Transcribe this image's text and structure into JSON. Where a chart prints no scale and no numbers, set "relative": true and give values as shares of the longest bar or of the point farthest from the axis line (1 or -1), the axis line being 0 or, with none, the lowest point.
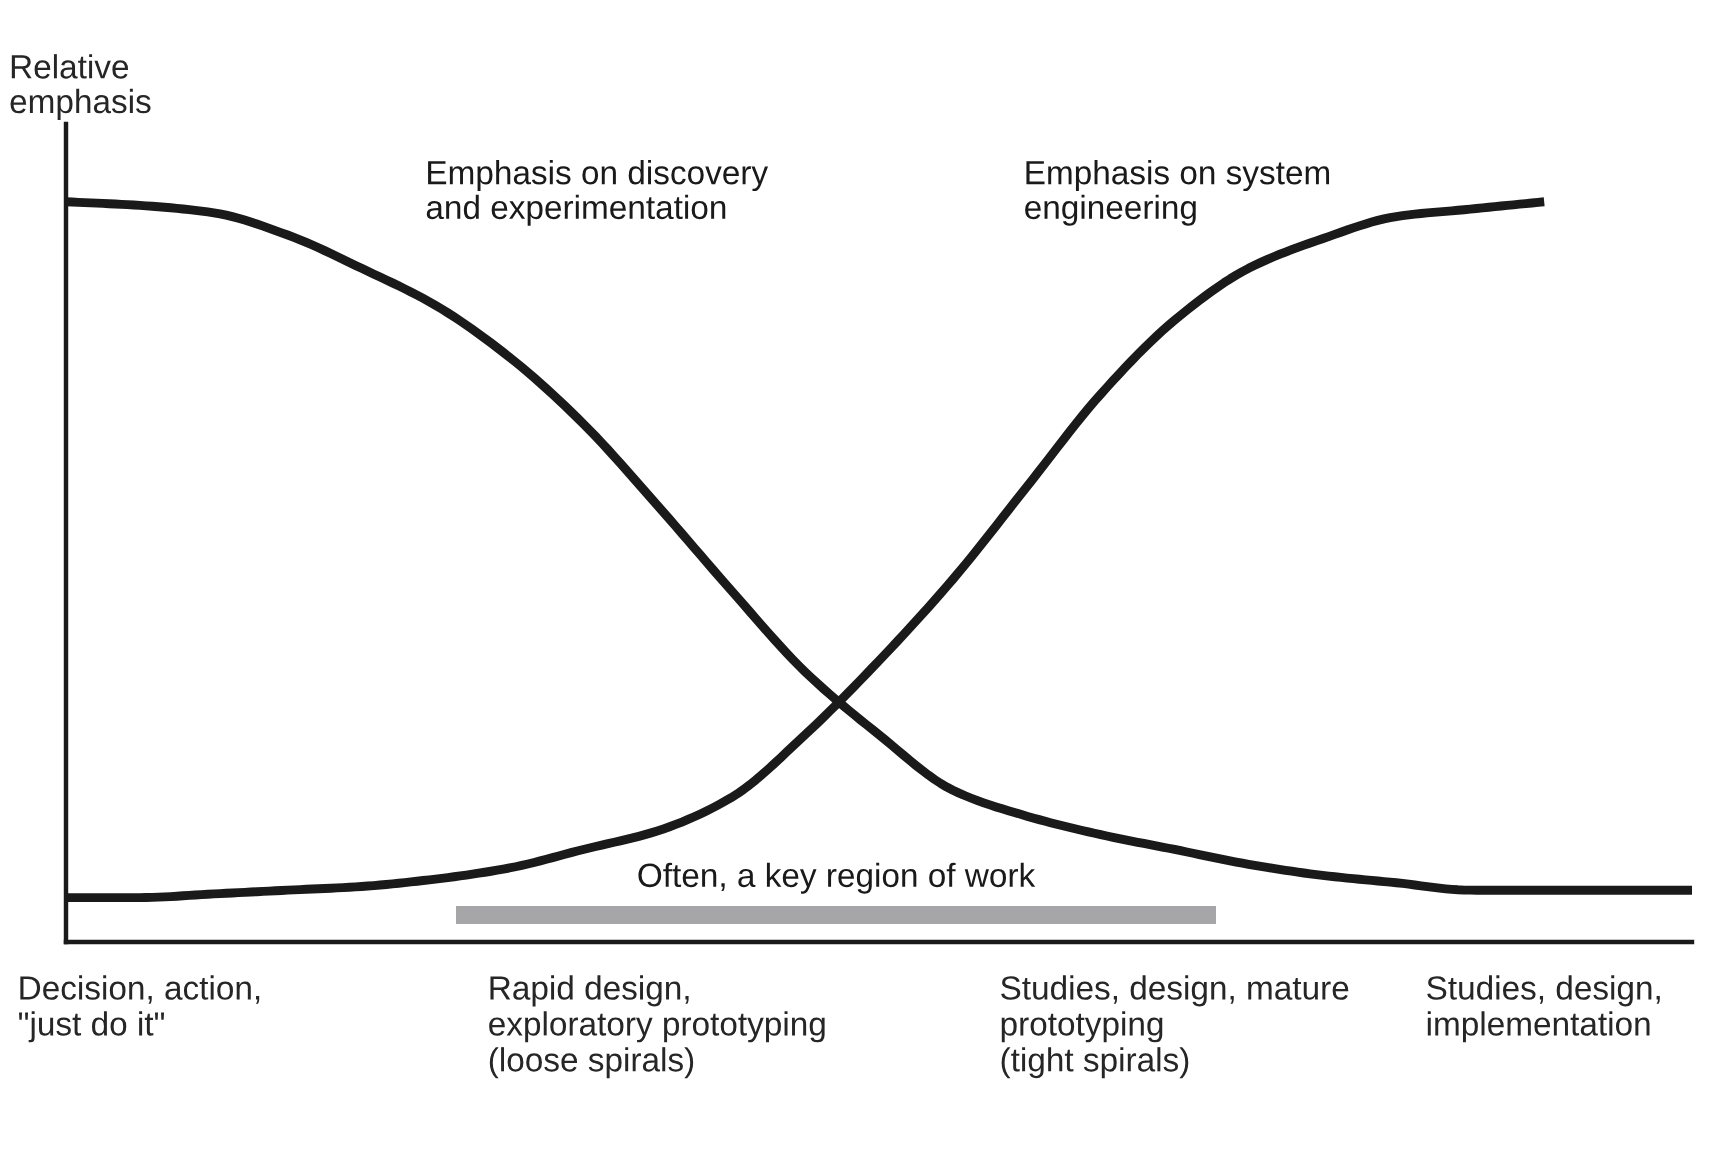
{
  "chart_data": {
    "type": "line",
    "relative": true,
    "ylabel": "Relative\nemphasis",
    "categories": [
      null,
      "Decision, action,\n\"just do it\"\n ",
      null,
      null,
      null,
      null,
      null,
      null,
      "Rapid design,\nexploratory prototyping\n(loose spirals)",
      null,
      null,
      null,
      null,
      null,
      null,
      "Studies, design, mature\nprototyping\n(tight spirals)",
      null,
      null,
      null,
      null,
      "Studies, design,\nimplementation\n ",
      null,
      null
    ],
    "tick_labels": "x",
    "grid": false,
    "marker": "none",
    "line_style": "solid",
    "series": [
      {
        "name": "Emphasis on discovery\nand experimentation",
        "color": "#1a1a1a",
        "values": [
          1.0,
          0.995,
          0.985,
          0.955,
          0.91,
          0.86,
          0.79,
          0.7,
          0.59,
          0.475,
          0.365,
          0.28,
          0.205,
          0.17,
          0.145,
          0.125,
          0.105,
          0.09,
          0.08,
          0.07,
          0.07,
          0.07,
          0.07
        ]
      },
      {
        "name": "Emphasis on system\nengineering",
        "color": "#1a1a1a",
        "values": [
          0.06,
          0.06,
          0.065,
          0.07,
          0.075,
          0.085,
          0.1,
          0.125,
          0.15,
          0.195,
          0.28,
          0.38,
          0.49,
          0.615,
          0.74,
          0.84,
          0.91,
          0.95,
          0.98,
          0.99,
          1.0,
          null,
          null
        ]
      }
    ],
    "annotations": [
      "Often, a key region of work"
    ]
  }
}
